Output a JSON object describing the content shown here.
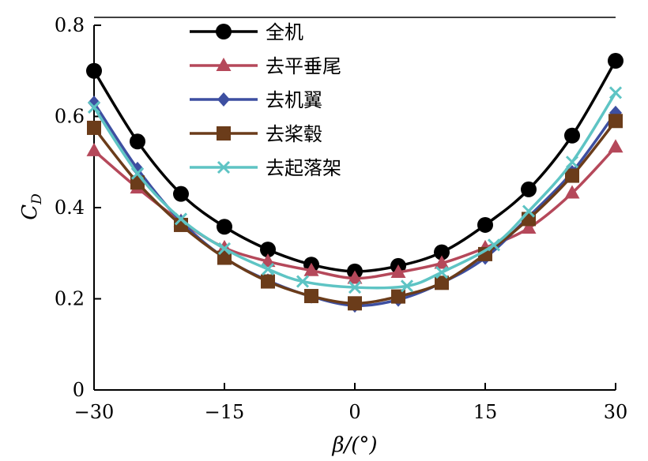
{
  "chart_data": {
    "type": "line",
    "title": "",
    "xlabel": "β/(°)",
    "ylabel": "C_D",
    "ylabel_main": "C",
    "ylabel_sub": "D",
    "xlim": [
      -30,
      30
    ],
    "ylim": [
      0,
      0.8
    ],
    "xticks": [
      -30,
      -15,
      0,
      15,
      30
    ],
    "yticks": [
      0,
      0.2,
      0.4,
      0.6,
      0.8
    ],
    "xtick_labels": [
      "−30",
      "−15",
      "0",
      "15",
      "30"
    ],
    "ytick_labels": [
      "0",
      "0.2",
      "0.4",
      "0.6",
      "0.8"
    ],
    "grid": false,
    "legend_position": "top-center",
    "series": [
      {
        "name": "全机",
        "color": "#000000",
        "marker": "circle",
        "x": [
          -30,
          -25,
          -20,
          -15,
          -10,
          -5,
          0,
          5,
          10,
          15,
          20,
          25,
          30
        ],
        "y": [
          0.7,
          0.545,
          0.43,
          0.358,
          0.308,
          0.275,
          0.26,
          0.272,
          0.302,
          0.362,
          0.44,
          0.558,
          0.722
        ]
      },
      {
        "name": "去平垂尾",
        "color": "#b5485a",
        "marker": "triangle",
        "x": [
          -30,
          -25,
          -20,
          -15,
          -10,
          -5,
          0,
          5,
          10,
          15,
          20,
          25,
          30
        ],
        "y": [
          0.525,
          0.443,
          0.37,
          0.312,
          0.282,
          0.262,
          0.245,
          0.258,
          0.278,
          0.312,
          0.355,
          0.432,
          0.533
        ]
      },
      {
        "name": "去机翼",
        "color": "#3d4fa1",
        "marker": "diamond",
        "x": [
          -30,
          -25,
          -20,
          -15,
          -10,
          -5,
          0,
          5,
          10,
          15,
          20,
          25,
          30
        ],
        "y": [
          0.63,
          0.485,
          0.37,
          0.29,
          0.24,
          0.205,
          0.185,
          0.198,
          0.235,
          0.29,
          0.38,
          0.478,
          0.608
        ]
      },
      {
        "name": "去桨毂",
        "color": "#6b3c1a",
        "marker": "square",
        "x": [
          -30,
          -25,
          -20,
          -15,
          -10,
          -5,
          0,
          5,
          10,
          15,
          20,
          25,
          30
        ],
        "y": [
          0.575,
          0.455,
          0.362,
          0.29,
          0.238,
          0.206,
          0.19,
          0.205,
          0.235,
          0.298,
          0.375,
          0.47,
          0.59
        ]
      },
      {
        "name": "去起落架",
        "color": "#5ec4c4",
        "marker": "x",
        "x": [
          -30,
          -25,
          -20,
          -15,
          -10,
          -6,
          0,
          6,
          10,
          16,
          20,
          25,
          30
        ],
        "y": [
          0.62,
          0.475,
          0.375,
          0.31,
          0.265,
          0.238,
          0.225,
          0.228,
          0.258,
          0.318,
          0.392,
          0.5,
          0.652
        ]
      }
    ]
  }
}
